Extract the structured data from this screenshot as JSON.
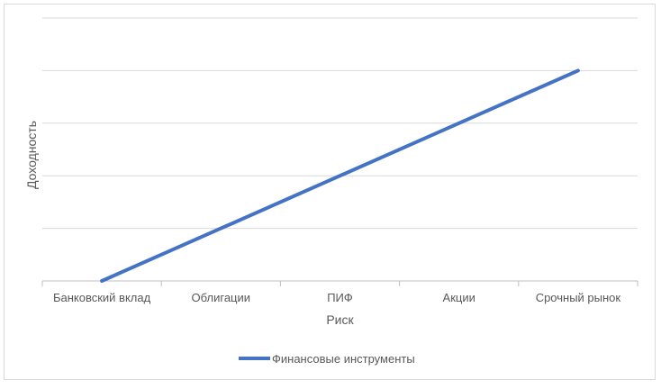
{
  "chart_data": {
    "type": "line",
    "title": "",
    "xlabel": "Риск",
    "ylabel": "Доходность",
    "categories": [
      "Банковский вклад",
      "Облигации",
      "ПИФ",
      "Акции",
      "Срочный рынок"
    ],
    "series": [
      {
        "name": "Финансовые инструменты",
        "values": [
          0,
          1,
          2,
          3,
          4
        ],
        "color": "#4472c4"
      }
    ],
    "ylim": [
      0,
      5
    ],
    "y_gridlines": 5,
    "grid": true,
    "y_tick_labels_shown": false,
    "legend": "bottom"
  }
}
